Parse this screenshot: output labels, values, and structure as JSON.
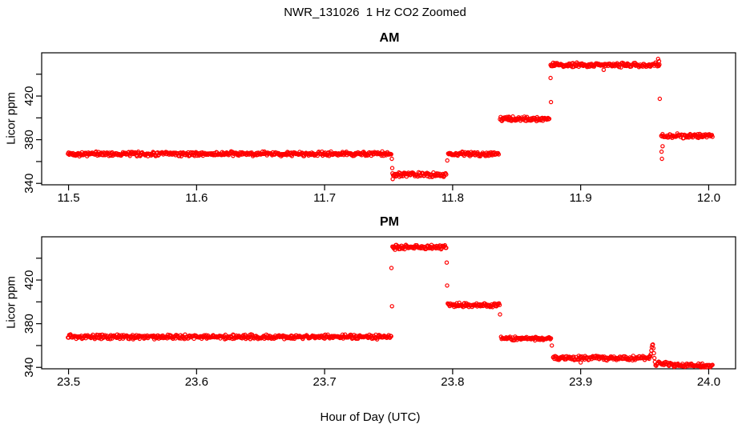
{
  "header": {
    "title": "NWR_131026  1 Hz CO2 Zoomed"
  },
  "colors": {
    "points": "#FF0000",
    "axis": "#000000",
    "background": "#FFFFFF"
  },
  "chart_data": [
    {
      "type": "scatter",
      "title": "AM",
      "xlabel": "",
      "ylabel": "Licor ppm",
      "marker": "open-circle",
      "color": "#FF0000",
      "grid": false,
      "xlim": [
        11.479,
        12.021
      ],
      "ylim": [
        338.7,
        459.6
      ],
      "x_ticks": [
        11.5,
        11.6,
        11.7,
        11.8,
        11.9,
        12.0
      ],
      "x_tick_decimals": 1,
      "y_ticks": [
        340,
        360,
        380,
        400,
        420,
        440
      ],
      "y_tick_labels": [
        "340",
        "",
        "380",
        "",
        "420",
        ""
      ],
      "sample_interval_hours": 0.0005,
      "noise_ppm": 1.2,
      "segments": [
        {
          "x_start": 11.4995,
          "x_end": 11.752,
          "level": 367
        },
        {
          "x_start": 11.753,
          "x_end": 11.795,
          "level": 348
        },
        {
          "x_start": 11.7965,
          "x_end": 11.836,
          "level": 367
        },
        {
          "x_start": 11.837,
          "x_end": 11.8755,
          "level": 399
        },
        {
          "x_start": 11.8765,
          "x_end": 11.9615,
          "level": 448.5
        },
        {
          "x_start": 11.963,
          "x_end": 12.003,
          "level": 383.5
        }
      ],
      "outliers": [
        [
          11.7525,
          362.5
        ],
        [
          11.7528,
          354.0
        ],
        [
          11.7532,
          344.0
        ],
        [
          11.7958,
          361.0
        ],
        [
          11.8765,
          436.5
        ],
        [
          11.8768,
          414.5
        ],
        [
          11.918,
          444.0
        ],
        [
          11.9605,
          454.0
        ],
        [
          11.9612,
          452.0
        ],
        [
          11.9618,
          417.5
        ],
        [
          11.9632,
          369.0
        ],
        [
          11.9635,
          362.5
        ],
        [
          11.964,
          374.0
        ]
      ]
    },
    {
      "type": "scatter",
      "title": "PM",
      "xlabel": "Hour of Day (UTC)",
      "ylabel": "Licor ppm",
      "marker": "open-circle",
      "color": "#FF0000",
      "grid": false,
      "xlim": [
        23.479,
        24.021
      ],
      "ylim": [
        338.7,
        459.6
      ],
      "x_ticks": [
        23.5,
        23.6,
        23.7,
        23.8,
        23.9,
        24.0
      ],
      "x_tick_decimals": 1,
      "y_ticks": [
        340,
        360,
        380,
        400,
        420,
        440
      ],
      "y_tick_labels": [
        "340",
        "",
        "380",
        "",
        "420",
        ""
      ],
      "sample_interval_hours": 0.0005,
      "noise_ppm": 1.2,
      "segments": [
        {
          "x_start": 23.4995,
          "x_end": 23.752,
          "level": 368
        },
        {
          "x_start": 23.753,
          "x_end": 23.795,
          "level": 450
        },
        {
          "x_start": 23.7962,
          "x_end": 23.8365,
          "level": 397
        },
        {
          "x_start": 23.8378,
          "x_end": 23.877,
          "level": 366.5
        },
        {
          "x_start": 23.8785,
          "x_end": 23.9545,
          "level": 348.5
        },
        {
          "x_start": 23.9595,
          "x_end": 24.003,
          "level": 343.5,
          "level_end": 341
        }
      ],
      "outliers": [
        [
          23.7522,
          431.0
        ],
        [
          23.7526,
          396.0
        ],
        [
          23.7954,
          436.0
        ],
        [
          23.7957,
          415.0
        ],
        [
          23.837,
          388.5
        ],
        [
          23.8775,
          360.0
        ],
        [
          23.9,
          344.5
        ],
        [
          23.9548,
          352.0
        ],
        [
          23.9552,
          355.5
        ],
        [
          23.9556,
          358.5
        ],
        [
          23.956,
          360.5
        ],
        [
          23.9564,
          361.0
        ],
        [
          23.9568,
          357.5
        ],
        [
          23.9572,
          353.0
        ],
        [
          23.9576,
          348.5
        ],
        [
          23.958,
          345.0
        ],
        [
          23.9585,
          342.0
        ],
        [
          23.959,
          341.5
        ]
      ]
    }
  ]
}
